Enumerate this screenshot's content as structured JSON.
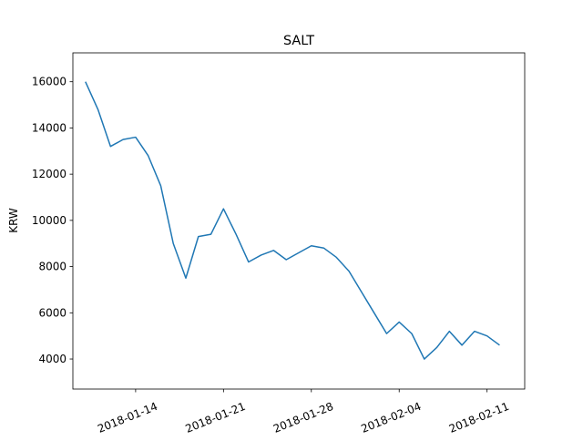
{
  "chart_data": {
    "type": "line",
    "title": "SALT",
    "y_label": "KRW",
    "x": [
      "2018-01-10",
      "2018-01-11",
      "2018-01-12",
      "2018-01-13",
      "2018-01-14",
      "2018-01-15",
      "2018-01-16",
      "2018-01-17",
      "2018-01-18",
      "2018-01-19",
      "2018-01-20",
      "2018-01-21",
      "2018-01-22",
      "2018-01-23",
      "2018-01-24",
      "2018-01-25",
      "2018-01-26",
      "2018-01-27",
      "2018-01-28",
      "2018-01-29",
      "2018-01-30",
      "2018-01-31",
      "2018-02-01",
      "2018-02-02",
      "2018-02-03",
      "2018-02-04",
      "2018-02-05",
      "2018-02-06",
      "2018-02-07",
      "2018-02-08",
      "2018-02-09",
      "2018-02-10",
      "2018-02-11",
      "2018-02-12"
    ],
    "series": [
      {
        "color": "#1f77b4",
        "values": [
          16000,
          14800,
          13200,
          13500,
          13600,
          12800,
          11500,
          9000,
          7500,
          9300,
          9400,
          10500,
          9400,
          8200,
          8500,
          8700,
          8300,
          8600,
          8900,
          8800,
          8400,
          7800,
          6900,
          6000,
          5100,
          5600,
          5100,
          4000,
          4500,
          5200,
          4600,
          5200,
          5000,
          4600
        ]
      }
    ],
    "xlim": [
      "2018-01-09",
      "2018-02-14"
    ],
    "xticks": [
      "2018-01-14",
      "2018-01-21",
      "2018-01-28",
      "2018-02-04",
      "2018-02-11"
    ],
    "ylim": [
      2700,
      17250
    ],
    "yticks": [
      4000,
      6000,
      8000,
      10000,
      12000,
      14000,
      16000
    ]
  }
}
